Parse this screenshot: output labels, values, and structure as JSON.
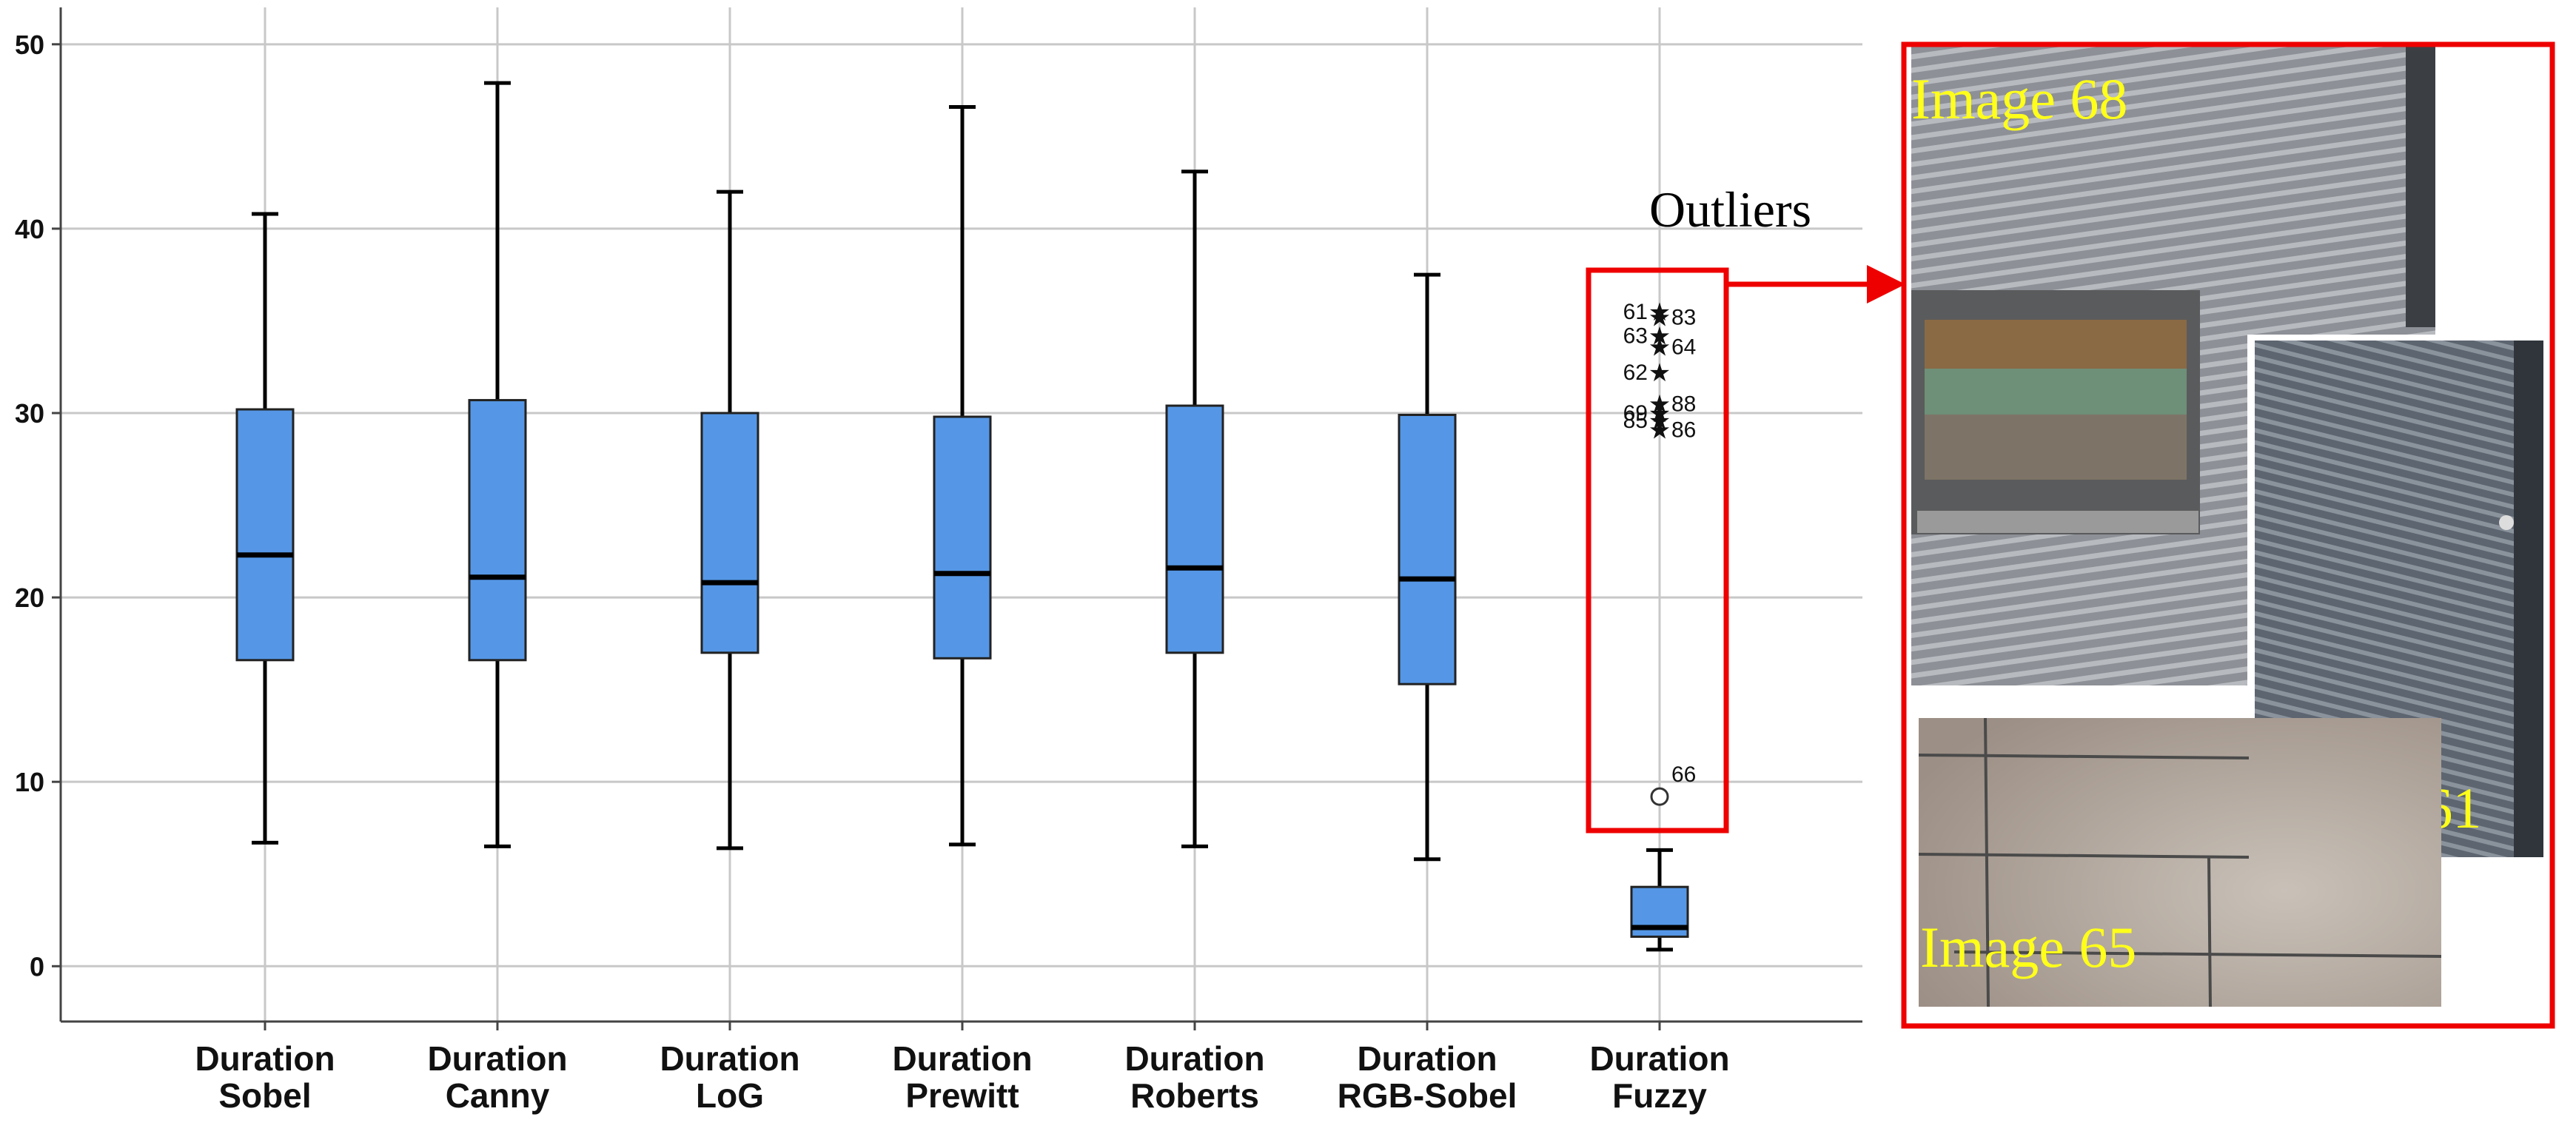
{
  "chart_data": {
    "type": "box",
    "ylim": [
      -3,
      52
    ],
    "yticks": [
      0,
      10,
      20,
      30,
      40,
      50
    ],
    "grid": true,
    "colors": {
      "box": "#5597e6",
      "grid": "#c8c8c8",
      "highlight": "#ee0000"
    },
    "categories": [
      {
        "line1": "Duration",
        "line2": "Sobel"
      },
      {
        "line1": "Duration",
        "line2": "Canny"
      },
      {
        "line1": "Duration",
        "line2": "LoG"
      },
      {
        "line1": "Duration",
        "line2": "Prewitt"
      },
      {
        "line1": "Duration",
        "line2": "Roberts"
      },
      {
        "line1": "Duration",
        "line2": "RGB-Sobel"
      },
      {
        "line1": "Duration",
        "line2": "Fuzzy"
      }
    ],
    "boxes": [
      {
        "min": 6.7,
        "q1": 16.6,
        "median": 22.3,
        "q3": 30.2,
        "max": 40.8
      },
      {
        "min": 6.5,
        "q1": 16.6,
        "median": 21.1,
        "q3": 30.7,
        "max": 47.9
      },
      {
        "min": 6.4,
        "q1": 17.0,
        "median": 20.8,
        "q3": 30.0,
        "max": 42.0
      },
      {
        "min": 6.6,
        "q1": 16.7,
        "median": 21.3,
        "q3": 29.8,
        "max": 46.6
      },
      {
        "min": 6.5,
        "q1": 17.0,
        "median": 21.6,
        "q3": 30.4,
        "max": 43.1
      },
      {
        "min": 5.8,
        "q1": 15.3,
        "median": 21.0,
        "q3": 29.9,
        "max": 37.5
      },
      {
        "min": 0.9,
        "q1": 1.6,
        "median": 2.1,
        "q3": 4.3,
        "max": 6.3
      }
    ],
    "outliers": {
      "series_index": 6,
      "extreme": [
        {
          "value": 35.5,
          "label": "61"
        },
        {
          "value": 35.2,
          "label": "83"
        },
        {
          "value": 34.2,
          "label": "63"
        },
        {
          "value": 33.6,
          "label": "64"
        },
        {
          "value": 32.2,
          "label": "62"
        },
        {
          "value": 30.5,
          "label": "88"
        },
        {
          "value": 30.0,
          "label": "69"
        },
        {
          "value": 29.6,
          "label": "85"
        },
        {
          "value": 29.1,
          "label": "86"
        }
      ],
      "mild": [
        {
          "value": 9.2,
          "label": "66"
        }
      ]
    }
  },
  "annotation": {
    "title": "Outliers"
  },
  "photos": [
    {
      "label": "Image 68",
      "icon": "facade-photo-icon"
    },
    {
      "label": "Image 61",
      "icon": "facade-photo-icon"
    },
    {
      "label": "Image 65",
      "icon": "panel-photo-icon"
    }
  ]
}
